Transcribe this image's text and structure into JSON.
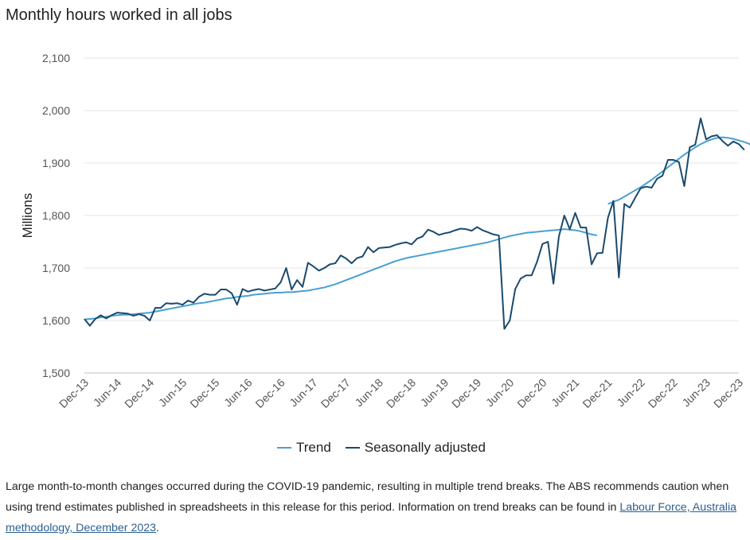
{
  "title": "Monthly hours worked in all jobs",
  "colors": {
    "trend": "#4a9fd2",
    "seasonally_adjusted": "#1a4a6e",
    "grid": "#e6e6e6",
    "axis_text": "#555555"
  },
  "legend": {
    "trend_label": "Trend",
    "sa_label": "Seasonally adjusted"
  },
  "note": {
    "text_before_link": "Large month-to-month changes occurred during the COVID-19 pandemic, resulting in multiple trend breaks. The ABS recommends caution when using trend estimates published in spreadsheets in this release for this period. Information on trend breaks can be found in ",
    "link_text": "Labour Force, Australia methodology, December 2023",
    "text_after_link": "."
  },
  "chart_data": {
    "type": "line",
    "title": "Monthly hours worked in all jobs",
    "xlabel": "",
    "ylabel": "Millions",
    "ylim": [
      1500,
      2100
    ],
    "yticks": [
      1500,
      1600,
      1700,
      1800,
      1900,
      2000,
      2100
    ],
    "ytick_labels": [
      "1,500",
      "1,600",
      "1,700",
      "1,800",
      "1,900",
      "2,000",
      "2,100"
    ],
    "grid": true,
    "legend_position": "bottom",
    "x_tick_labels": [
      "Dec-13",
      "Jun-14",
      "Dec-14",
      "Jun-15",
      "Dec-15",
      "Jun-16",
      "Dec-16",
      "Jun-17",
      "Dec-17",
      "Jun-18",
      "Dec-18",
      "Jun-19",
      "Dec-19",
      "Jun-20",
      "Dec-20",
      "Jun-21",
      "Dec-21",
      "Jun-22",
      "Dec-22",
      "Jun-23",
      "Dec-23"
    ],
    "months_per_tick": 6,
    "series": [
      {
        "name": "Trend",
        "segments": [
          {
            "start_index": 0,
            "values": [
              1602,
              1603,
              1604,
              1606,
              1607,
              1609,
              1610,
              1611,
              1611,
              1612,
              1613,
              1614,
              1615,
              1617,
              1619,
              1621,
              1623,
              1625,
              1627,
              1629,
              1631,
              1633,
              1634,
              1636,
              1638,
              1640,
              1642,
              1643,
              1645,
              1646,
              1647,
              1649,
              1650,
              1651,
              1652,
              1653,
              1653,
              1654,
              1654,
              1655,
              1656,
              1657,
              1659,
              1661,
              1663,
              1666,
              1669,
              1673,
              1677,
              1681,
              1685,
              1689,
              1693,
              1697,
              1701,
              1705,
              1709,
              1713,
              1716,
              1719,
              1721,
              1723,
              1725,
              1727,
              1729,
              1731,
              1733,
              1735,
              1737,
              1739,
              1741,
              1743,
              1745,
              1747,
              1749,
              1752,
              1755,
              1758,
              1761,
              1763,
              1765,
              1767,
              1768,
              1769,
              1770,
              1771,
              1772,
              1773,
              1774,
              1773,
              1772,
              1770,
              1767,
              1764,
              1762
            ]
          },
          {
            "start_index": 96,
            "values": [
              1822,
              1826,
              1830,
              1836,
              1842,
              1848,
              1854,
              1861,
              1868,
              1876,
              1884,
              1892,
              1900,
              1908,
              1916,
              1923,
              1930,
              1936,
              1941,
              1945,
              1948,
              1949,
              1948,
              1946,
              1943,
              1940,
              1936,
              1932,
              1927
            ]
          }
        ]
      },
      {
        "name": "Seasonally adjusted",
        "start_index": 0,
        "values": [
          1603,
          1590,
          1603,
          1610,
          1604,
          1610,
          1615,
          1614,
          1613,
          1609,
          1612,
          1609,
          1600,
          1624,
          1624,
          1633,
          1632,
          1633,
          1630,
          1638,
          1634,
          1645,
          1651,
          1649,
          1649,
          1659,
          1659,
          1652,
          1630,
          1660,
          1655,
          1658,
          1660,
          1657,
          1659,
          1661,
          1673,
          1700,
          1659,
          1677,
          1664,
          1710,
          1703,
          1695,
          1700,
          1707,
          1709,
          1724,
          1718,
          1709,
          1719,
          1722,
          1740,
          1730,
          1738,
          1739,
          1740,
          1744,
          1747,
          1749,
          1745,
          1756,
          1760,
          1773,
          1769,
          1763,
          1766,
          1768,
          1772,
          1775,
          1774,
          1771,
          1778,
          1772,
          1768,
          1764,
          1762,
          1584,
          1600,
          1660,
          1680,
          1686,
          1686,
          1712,
          1746,
          1750,
          1670,
          1760,
          1800,
          1774,
          1805,
          1777,
          1777,
          1707,
          1728,
          1729,
          1796,
          1828,
          1682,
          1822,
          1815,
          1834,
          1852,
          1855,
          1853,
          1870,
          1876,
          1906,
          1906,
          1902,
          1856,
          1930,
          1935,
          1985,
          1945,
          1951,
          1953,
          1942,
          1933,
          1941,
          1936,
          1925
        ]
      }
    ]
  }
}
